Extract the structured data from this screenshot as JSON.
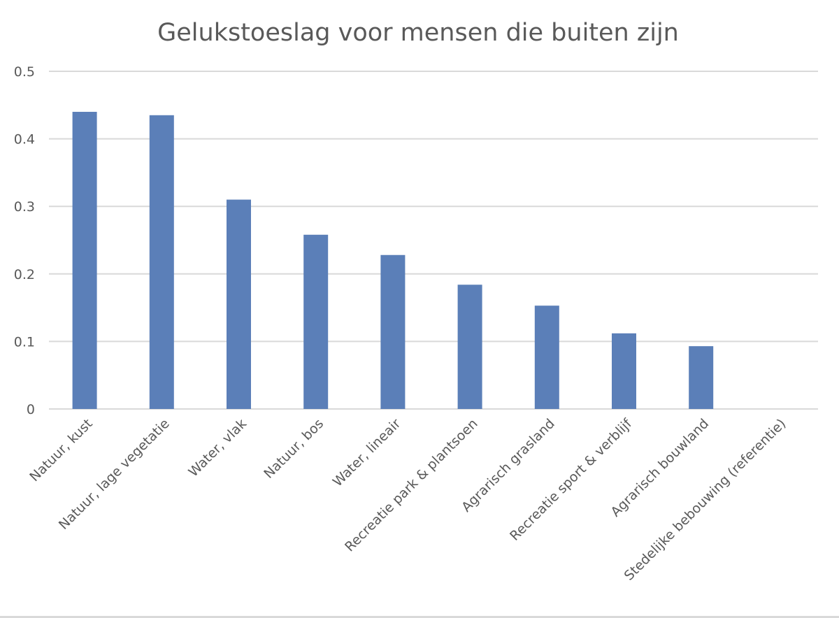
{
  "chart_data": {
    "type": "bar",
    "title": "Gelukstoeslag voor mensen die buiten zijn",
    "xlabel": "",
    "ylabel": "",
    "categories": [
      "Natuur, kust",
      "Natuur, lage vegetatie",
      "Water, vlak",
      "Natuur, bos",
      "Water, lineair",
      "Recreatie park & plantsoen",
      "Agrarisch grasland",
      "Recreatie sport & verblijf",
      "Agrarisch bouwland",
      "Stedelijke bebouwing (referentie)"
    ],
    "values": [
      0.44,
      0.435,
      0.31,
      0.258,
      0.228,
      0.184,
      0.153,
      0.112,
      0.093,
      0
    ],
    "ylim": [
      0,
      0.5
    ],
    "yticks": [
      0,
      0.1,
      0.2,
      0.3,
      0.4,
      0.5
    ],
    "ytick_labels": [
      "0",
      "0.1",
      "0.2",
      "0.3",
      "0.4",
      "0.5"
    ],
    "grid": true,
    "legend": "none",
    "bar_color": "#5b7fb8",
    "grid_color": "#d9d9d9"
  }
}
